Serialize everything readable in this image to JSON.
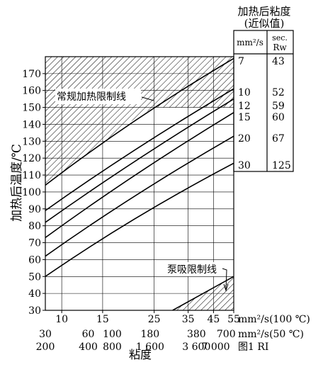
{
  "chart_data": {
    "type": "line",
    "title": "",
    "table": {
      "title_line1": "加热后粘度",
      "title_line2": "(近似值)",
      "col1_header": "mm²/s",
      "col2_header_line1": "sec.",
      "col2_header_line2": "Rw",
      "rows": [
        {
          "mm2s": "7",
          "rw": "43"
        },
        {
          "mm2s": "10",
          "rw": "52"
        },
        {
          "mm2s": "12",
          "rw": "59"
        },
        {
          "mm2s": "15",
          "rw": "60"
        },
        {
          "mm2s": "20",
          "rw": "67"
        },
        {
          "mm2s": "30",
          "rw": "125"
        }
      ]
    },
    "ylabel": "加热后温度/℃",
    "xlabel": "粘度",
    "ylim": [
      30,
      180
    ],
    "y_ticks": [
      30,
      40,
      50,
      60,
      70,
      80,
      90,
      100,
      110,
      120,
      130,
      140,
      150,
      160,
      170
    ],
    "x_scale": "log (viscosity at 100 ℃, mm²/s)",
    "xlim": [
      8.5,
      55
    ],
    "x_axis_rows": [
      {
        "ticks": [
          {
            "x": 10,
            "label": "10"
          },
          {
            "x": 15,
            "label": "15"
          },
          {
            "x": 25,
            "label": "25"
          },
          {
            "x": 35,
            "label": "35"
          },
          {
            "x": 45,
            "label": "45"
          },
          {
            "x": 55,
            "label": "55"
          }
        ],
        "unit": "mm²/s(100 ℃)"
      },
      {
        "ticks": [
          {
            "x": 8.5,
            "label": "30"
          },
          {
            "x": 13,
            "label": "60"
          },
          {
            "x": 16.5,
            "label": "100"
          },
          {
            "x": 24,
            "label": "180"
          },
          {
            "x": 38,
            "label": "380"
          },
          {
            "x": 51,
            "label": "700"
          }
        ],
        "unit": "mm²/s(50 ℃)"
      },
      {
        "ticks": [
          {
            "x": 8.5,
            "label": "200"
          },
          {
            "x": 13,
            "label": "400"
          },
          {
            "x": 16.5,
            "label": "800"
          },
          {
            "x": 24,
            "label": "1 600"
          },
          {
            "x": 38,
            "label": "3 600"
          },
          {
            "x": 46,
            "label": "7 000"
          }
        ],
        "unit": "图1 RI"
      }
    ],
    "grid": true,
    "series": [
      {
        "values": [
          [
            8.5,
            104
          ],
          [
            20,
            142
          ],
          [
            55,
            179
          ]
        ]
      },
      {
        "values": [
          [
            8.5,
            89
          ],
          [
            20,
            124
          ],
          [
            55,
            161
          ]
        ]
      },
      {
        "values": [
          [
            8.5,
            82
          ],
          [
            20,
            117
          ],
          [
            55,
            155
          ]
        ]
      },
      {
        "values": [
          [
            8.5,
            73
          ],
          [
            20,
            109
          ],
          [
            55,
            147
          ]
        ]
      },
      {
        "values": [
          [
            8.5,
            62
          ],
          [
            20,
            97
          ],
          [
            55,
            133
          ]
        ]
      },
      {
        "values": [
          [
            8.5,
            50
          ],
          [
            20,
            84
          ],
          [
            55,
            117
          ]
        ]
      }
    ],
    "heating_limit": {
      "label": "常规加热限制线",
      "values": [
        [
          8.5,
          104
        ],
        [
          20,
          142
        ],
        [
          55,
          179
        ]
      ],
      "hatched_region": "above 150 ℃ and above/left of the heating limit"
    },
    "pump_limit": {
      "label": "泵吸限制线",
      "values": [
        [
          30,
          30
        ],
        [
          55,
          50
        ]
      ],
      "hatched_region": "below the pump limit line"
    }
  }
}
